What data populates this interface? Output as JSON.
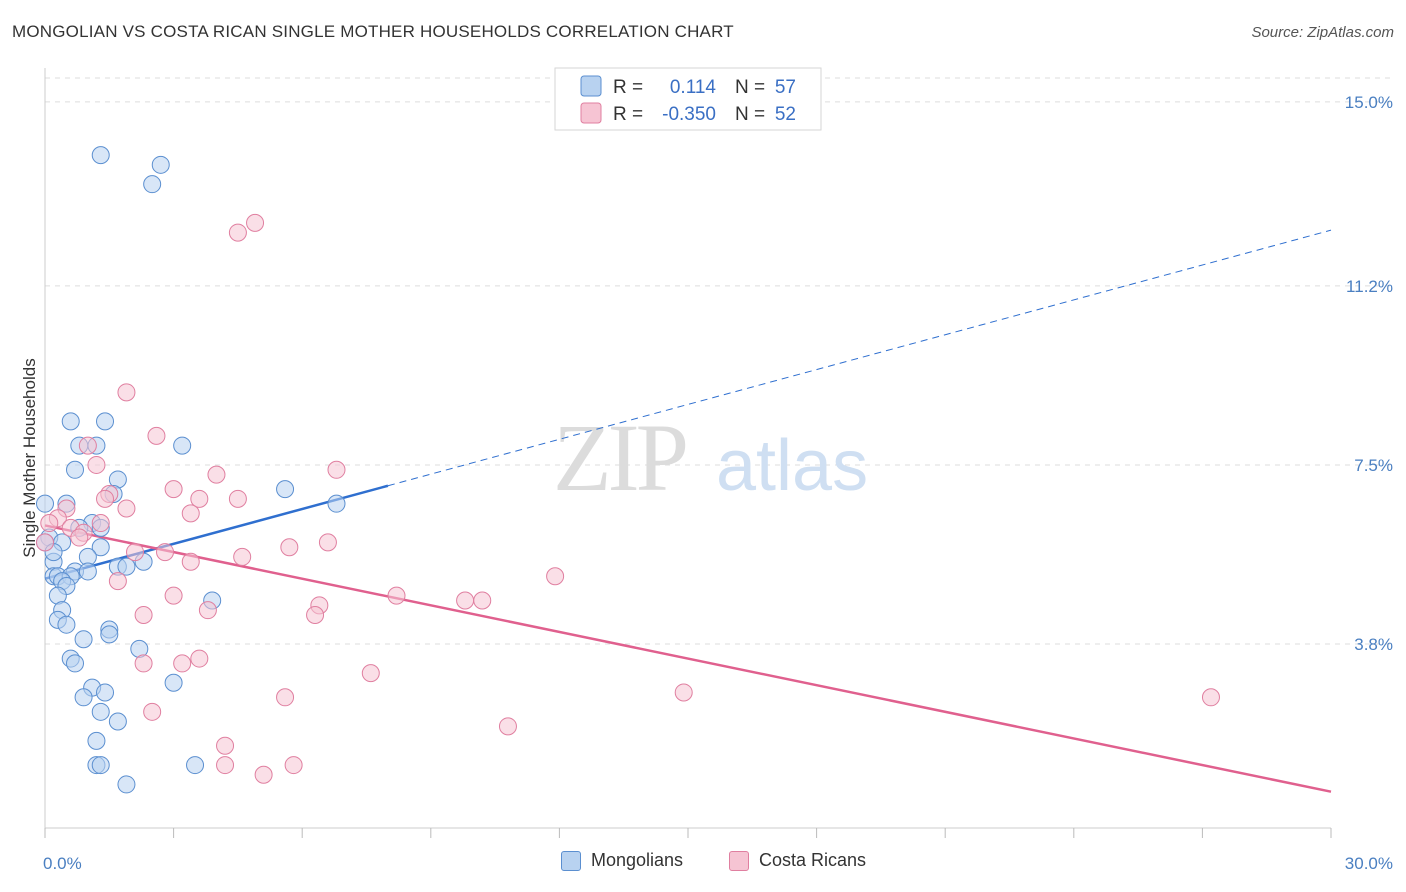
{
  "title": "MONGOLIAN VS COSTA RICAN SINGLE MOTHER HOUSEHOLDS CORRELATION CHART",
  "source": "Source: ZipAtlas.com",
  "watermark": {
    "zip": "ZIP",
    "atlas": "atlas"
  },
  "legend": {
    "r_label": "R =",
    "n_label": "N =",
    "mongolians": {
      "r": "0.114",
      "n": "57"
    },
    "costa_ricans": {
      "r": "-0.350",
      "n": "52"
    }
  },
  "bottom_legend": {
    "mongolians": "Mongolians",
    "costa_ricans": "Costa Ricans"
  },
  "colors": {
    "blue_fill": "#b8d2f0",
    "blue_stroke": "#5b8fd0",
    "blue_line": "#2f6fcf",
    "pink_fill": "#f6c4d3",
    "pink_stroke": "#e07fa0",
    "pink_line": "#e0608e",
    "tick_label": "#4a7fc1",
    "grid": "#dddddd"
  },
  "chart_data": {
    "type": "scatter",
    "title": "MONGOLIAN VS COSTA RICAN SINGLE MOTHER HOUSEHOLDS CORRELATION CHART",
    "xlabel": "",
    "ylabel": "Single Mother Households",
    "xlim": [
      0,
      30
    ],
    "ylim": [
      0,
      15.7
    ],
    "x_tick_labels": [
      "0.0%",
      "30.0%"
    ],
    "y_ticks": [
      3.8,
      7.5,
      11.2,
      15.0
    ],
    "y_tick_labels": [
      "3.8%",
      "7.5%",
      "11.2%",
      "15.0%"
    ],
    "grid": true,
    "legend_position": "top-center",
    "series": [
      {
        "name": "Mongolians",
        "r": 0.114,
        "n": 57,
        "trend": {
          "x": [
            0,
            30
          ],
          "y": [
            5.15,
            12.35
          ],
          "solid_until_x": 8.0
        },
        "points": [
          [
            1.3,
            13.9
          ],
          [
            2.7,
            13.7
          ],
          [
            2.5,
            13.3
          ],
          [
            0.6,
            8.4
          ],
          [
            1.4,
            8.4
          ],
          [
            0.8,
            7.9
          ],
          [
            1.2,
            7.9
          ],
          [
            3.2,
            7.9
          ],
          [
            0.7,
            7.4
          ],
          [
            1.7,
            7.2
          ],
          [
            5.6,
            7.0
          ],
          [
            1.6,
            6.9
          ],
          [
            0.5,
            6.7
          ],
          [
            6.8,
            6.7
          ],
          [
            1.1,
            6.3
          ],
          [
            0.8,
            6.2
          ],
          [
            1.3,
            6.2
          ],
          [
            0.1,
            6.0
          ],
          [
            0.4,
            5.9
          ],
          [
            1.3,
            5.8
          ],
          [
            1.0,
            5.6
          ],
          [
            2.3,
            5.5
          ],
          [
            1.7,
            5.4
          ],
          [
            0.2,
            5.5
          ],
          [
            0.7,
            5.3
          ],
          [
            1.0,
            5.3
          ],
          [
            0.2,
            5.2
          ],
          [
            0.3,
            5.2
          ],
          [
            0.6,
            5.2
          ],
          [
            0.4,
            5.1
          ],
          [
            0.5,
            5.0
          ],
          [
            0.3,
            4.8
          ],
          [
            3.9,
            4.7
          ],
          [
            0.4,
            4.5
          ],
          [
            0.3,
            4.3
          ],
          [
            0.5,
            4.2
          ],
          [
            1.5,
            4.1
          ],
          [
            1.5,
            4.0
          ],
          [
            0.9,
            3.9
          ],
          [
            2.2,
            3.7
          ],
          [
            0.6,
            3.5
          ],
          [
            0.7,
            3.4
          ],
          [
            3.0,
            3.0
          ],
          [
            1.1,
            2.9
          ],
          [
            1.4,
            2.8
          ],
          [
            0.9,
            2.7
          ],
          [
            1.3,
            2.4
          ],
          [
            1.7,
            2.2
          ],
          [
            1.2,
            1.8
          ],
          [
            1.2,
            1.3
          ],
          [
            1.3,
            1.3
          ],
          [
            3.5,
            1.3
          ],
          [
            1.9,
            0.9
          ],
          [
            0.0,
            6.7
          ],
          [
            0.0,
            5.9
          ],
          [
            1.9,
            5.4
          ],
          [
            0.2,
            5.7
          ]
        ]
      },
      {
        "name": "Costa Ricans",
        "r": -0.35,
        "n": 52,
        "trend": {
          "x": [
            0,
            30
          ],
          "y": [
            6.25,
            0.75
          ]
        },
        "points": [
          [
            4.9,
            12.5
          ],
          [
            4.5,
            12.3
          ],
          [
            1.9,
            9.0
          ],
          [
            2.6,
            8.1
          ],
          [
            1.0,
            7.9
          ],
          [
            1.2,
            7.5
          ],
          [
            6.8,
            7.4
          ],
          [
            4.0,
            7.3
          ],
          [
            3.0,
            7.0
          ],
          [
            1.5,
            6.9
          ],
          [
            3.6,
            6.8
          ],
          [
            4.5,
            6.8
          ],
          [
            1.4,
            6.8
          ],
          [
            0.5,
            6.6
          ],
          [
            1.9,
            6.6
          ],
          [
            3.4,
            6.5
          ],
          [
            0.3,
            6.4
          ],
          [
            1.3,
            6.3
          ],
          [
            0.6,
            6.2
          ],
          [
            0.9,
            6.1
          ],
          [
            0.8,
            6.0
          ],
          [
            0.0,
            5.9
          ],
          [
            6.6,
            5.9
          ],
          [
            5.7,
            5.8
          ],
          [
            2.1,
            5.7
          ],
          [
            2.8,
            5.7
          ],
          [
            4.6,
            5.6
          ],
          [
            3.4,
            5.5
          ],
          [
            11.9,
            5.2
          ],
          [
            1.7,
            5.1
          ],
          [
            3.0,
            4.8
          ],
          [
            8.2,
            4.8
          ],
          [
            9.8,
            4.7
          ],
          [
            10.2,
            4.7
          ],
          [
            6.4,
            4.6
          ],
          [
            3.8,
            4.5
          ],
          [
            2.3,
            4.4
          ],
          [
            6.3,
            4.4
          ],
          [
            3.6,
            3.5
          ],
          [
            2.3,
            3.4
          ],
          [
            3.2,
            3.4
          ],
          [
            7.6,
            3.2
          ],
          [
            14.9,
            2.8
          ],
          [
            27.2,
            2.7
          ],
          [
            5.6,
            2.7
          ],
          [
            2.5,
            2.4
          ],
          [
            10.8,
            2.1
          ],
          [
            4.2,
            1.7
          ],
          [
            4.2,
            1.3
          ],
          [
            5.8,
            1.3
          ],
          [
            5.1,
            1.1
          ],
          [
            0.1,
            6.3
          ]
        ]
      }
    ]
  }
}
